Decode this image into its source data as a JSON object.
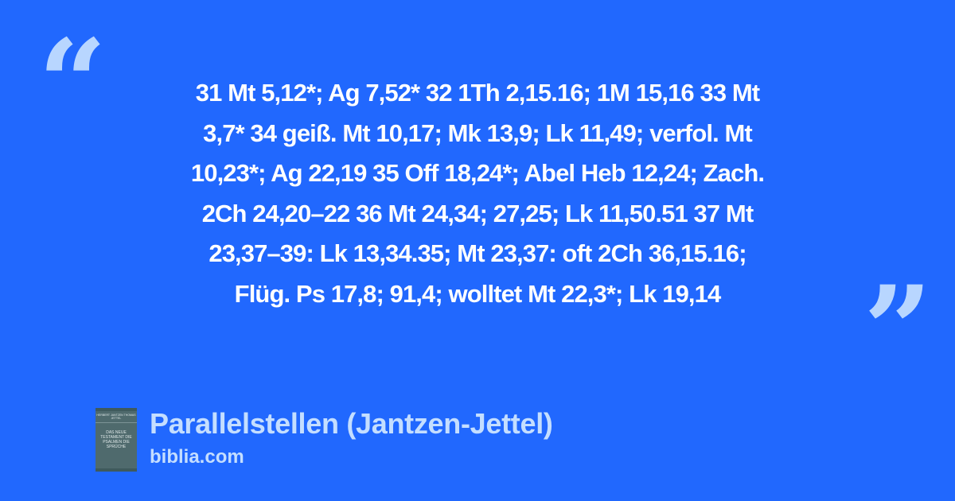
{
  "quote": {
    "open_mark": "“",
    "close_mark": "”",
    "lines": [
      "31 Mt 5,12*; Ag 7,52* 32 1Th 2,15.16; 1M 15,16 33 Mt",
      "3,7* 34 geiß. Mt 10,17; Mk 13,9; Lk 11,49; verfol. Mt",
      "10,23*; Ag 22,19 35 Off 18,24*; Abel Heb 12,24; Zach.",
      "2Ch 24,20–22 36 Mt 24,34; 27,25; Lk 11,50.51 37 Mt",
      "23,37–39: Lk 13,34.35; Mt 23,37: oft 2Ch 36,15.16;",
      "Flüg. Ps 17,8; 91,4; wolltet Mt 22,3*; Lk 19,14"
    ]
  },
  "source": {
    "title": "Parallelstellen (Jantzen-Jettel)",
    "site": "biblia.com",
    "cover": {
      "authors": "HERBERT JANTZEN THOMAS JETTEL",
      "text": "DAS NEUE TESTAMENT DIE PSALMEN DIE SPRÜCHE"
    }
  },
  "colors": {
    "background": "#2168fe",
    "quote_marks": "#b8d6ff",
    "title": "#c4deff",
    "text": "#ffffff"
  }
}
